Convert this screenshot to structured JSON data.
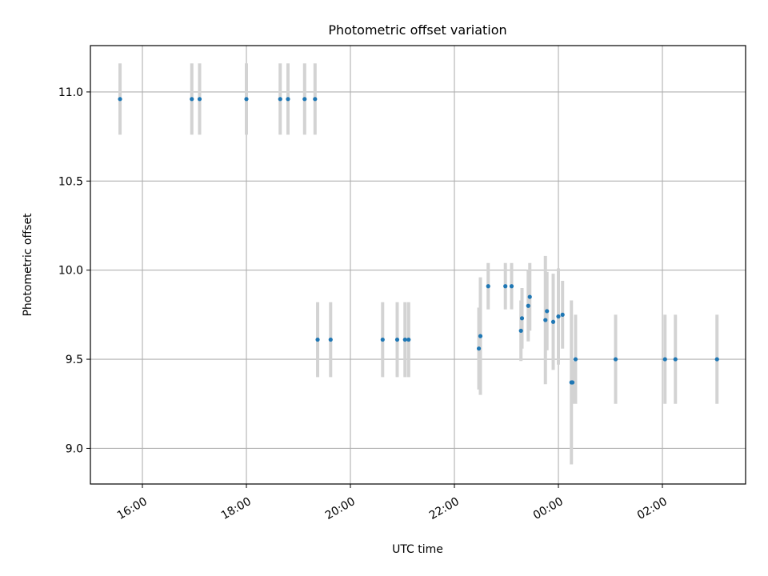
{
  "chart_data": {
    "type": "scatter",
    "title": "Photometric offset variation",
    "xlabel": "UTC time",
    "ylabel": "Photometric offset",
    "xlim_hours": [
      15.0,
      27.6
    ],
    "ylim": [
      8.8,
      11.26
    ],
    "x_ticks": [
      {
        "hour": 16,
        "label": "16:00"
      },
      {
        "hour": 18,
        "label": "18:00"
      },
      {
        "hour": 20,
        "label": "20:00"
      },
      {
        "hour": 22,
        "label": "22:00"
      },
      {
        "hour": 24,
        "label": "00:00"
      },
      {
        "hour": 26,
        "label": "02:00"
      }
    ],
    "y_ticks": [
      {
        "value": 9.0,
        "label": "9.0"
      },
      {
        "value": 9.5,
        "label": "9.5"
      },
      {
        "value": 10.0,
        "label": "10.0"
      },
      {
        "value": 10.5,
        "label": "10.5"
      },
      {
        "value": 11.0,
        "label": "11.0"
      }
    ],
    "grid": true,
    "colors": {
      "point": "#1f77b4",
      "errorbar": "#d3d3d3",
      "grid": "#b0b0b0"
    },
    "points": [
      {
        "x": 15.57,
        "y": 10.96,
        "err": 0.2
      },
      {
        "x": 16.95,
        "y": 10.96,
        "err": 0.2
      },
      {
        "x": 17.1,
        "y": 10.96,
        "err": 0.2
      },
      {
        "x": 18.0,
        "y": 10.96,
        "err": 0.2
      },
      {
        "x": 18.65,
        "y": 10.96,
        "err": 0.2
      },
      {
        "x": 18.8,
        "y": 10.96,
        "err": 0.2
      },
      {
        "x": 19.12,
        "y": 10.96,
        "err": 0.2
      },
      {
        "x": 19.32,
        "y": 10.96,
        "err": 0.2
      },
      {
        "x": 19.37,
        "y": 9.61,
        "err": 0.21
      },
      {
        "x": 19.62,
        "y": 9.61,
        "err": 0.21
      },
      {
        "x": 20.62,
        "y": 9.61,
        "err": 0.21
      },
      {
        "x": 20.9,
        "y": 9.61,
        "err": 0.21
      },
      {
        "x": 21.05,
        "y": 9.61,
        "err": 0.21
      },
      {
        "x": 21.12,
        "y": 9.61,
        "err": 0.21
      },
      {
        "x": 22.47,
        "y": 9.56,
        "err": 0.23
      },
      {
        "x": 22.5,
        "y": 9.63,
        "err": 0.33
      },
      {
        "x": 22.65,
        "y": 9.91,
        "err": 0.13
      },
      {
        "x": 22.98,
        "y": 9.91,
        "err": 0.13
      },
      {
        "x": 23.1,
        "y": 9.91,
        "err": 0.13
      },
      {
        "x": 23.28,
        "y": 9.66,
        "err": 0.17
      },
      {
        "x": 23.3,
        "y": 9.73,
        "err": 0.17
      },
      {
        "x": 23.42,
        "y": 9.8,
        "err": 0.2
      },
      {
        "x": 23.45,
        "y": 9.85,
        "err": 0.19
      },
      {
        "x": 23.75,
        "y": 9.72,
        "err": 0.36
      },
      {
        "x": 23.78,
        "y": 9.77,
        "err": 0.22
      },
      {
        "x": 23.9,
        "y": 9.71,
        "err": 0.27
      },
      {
        "x": 24.0,
        "y": 9.74,
        "err": 0.27
      },
      {
        "x": 24.08,
        "y": 9.75,
        "err": 0.19
      },
      {
        "x": 24.25,
        "y": 9.37,
        "err": 0.46
      },
      {
        "x": 24.27,
        "y": 9.37,
        "err": 0.12
      },
      {
        "x": 24.33,
        "y": 9.5,
        "err": 0.25
      },
      {
        "x": 25.1,
        "y": 9.5,
        "err": 0.25
      },
      {
        "x": 26.05,
        "y": 9.5,
        "err": 0.25
      },
      {
        "x": 26.25,
        "y": 9.5,
        "err": 0.25
      },
      {
        "x": 27.05,
        "y": 9.5,
        "err": 0.25
      }
    ]
  }
}
